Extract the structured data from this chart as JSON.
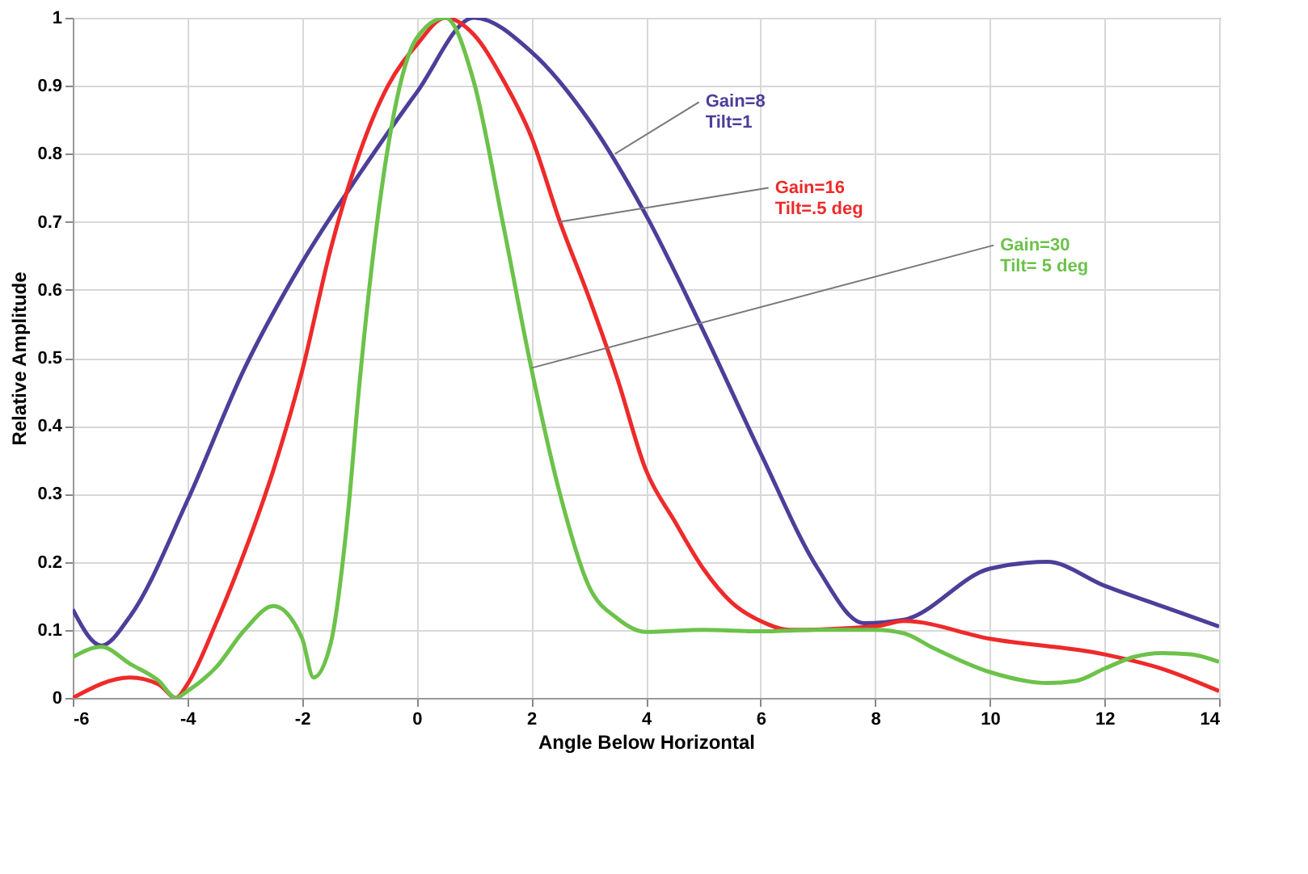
{
  "chart_data": {
    "type": "line",
    "xlabel": "Angle Below Horizontal",
    "ylabel": "Relative Amplitude",
    "xlim": [
      -6,
      14
    ],
    "xticks": [
      -6,
      -4,
      -2,
      0,
      2,
      4,
      6,
      8,
      10,
      12,
      14
    ],
    "ylim": [
      0,
      1
    ],
    "yticks": [
      0,
      0.1,
      0.2,
      0.3,
      0.4,
      0.5,
      0.6,
      0.7,
      0.8,
      0.9,
      1
    ],
    "grid": true,
    "marker": "none",
    "line_style": "solid",
    "series": [
      {
        "color": "#4b3f9a",
        "x": [
          -6,
          -5.5,
          -5,
          -4,
          -3,
          -2,
          -1,
          0,
          1,
          2,
          3,
          4,
          5,
          6,
          7,
          7.8,
          8.5,
          10,
          11,
          12,
          13,
          14
        ],
        "values": [
          0.13,
          0.077,
          0.12,
          0.29,
          0.485,
          0.64,
          0.77,
          0.89,
          1.0,
          0.95,
          0.85,
          0.71,
          0.54,
          0.36,
          0.19,
          0.11,
          0.115,
          0.19,
          0.2,
          0.165,
          0.135,
          0.105
        ]
      },
      {
        "color": "#ee2a2a",
        "x": [
          -6,
          -5,
          -4.5,
          -4.2,
          -4,
          -3.5,
          -3,
          -2.5,
          -2,
          -1.5,
          -1,
          -0.5,
          0,
          0.5,
          1,
          1.5,
          2,
          2.5,
          3,
          3.5,
          4,
          4.5,
          5,
          5.5,
          6,
          6.5,
          8,
          8.5,
          10,
          12,
          13,
          14
        ],
        "values": [
          0.0,
          0.03,
          0.02,
          0.0,
          0.02,
          0.11,
          0.215,
          0.335,
          0.48,
          0.66,
          0.8,
          0.9,
          0.96,
          1.0,
          0.975,
          0.91,
          0.825,
          0.7,
          0.59,
          0.47,
          0.335,
          0.26,
          0.19,
          0.14,
          0.113,
          0.1,
          0.105,
          0.113,
          0.087,
          0.064,
          0.043,
          0.01
        ]
      },
      {
        "color": "#6cc24a",
        "x": [
          -6,
          -5.5,
          -5,
          -4.5,
          -4.2,
          -4,
          -3.5,
          -3,
          -2.5,
          -2,
          -1.8,
          -1.5,
          -1.2,
          -1,
          -0.5,
          0,
          0.5,
          1,
          1.5,
          2,
          2.5,
          3,
          3.5,
          4,
          5,
          6,
          7,
          8,
          8.5,
          9,
          10,
          11,
          11.5,
          12,
          12.5,
          13,
          13.5,
          14
        ],
        "values": [
          0.06,
          0.075,
          0.05,
          0.025,
          0.0,
          0.01,
          0.045,
          0.1,
          0.135,
          0.088,
          0.03,
          0.08,
          0.27,
          0.46,
          0.81,
          0.97,
          1.0,
          0.905,
          0.7,
          0.485,
          0.3,
          0.165,
          0.117,
          0.097,
          0.1,
          0.098,
          0.1,
          0.1,
          0.095,
          0.074,
          0.038,
          0.022,
          0.025,
          0.043,
          0.06,
          0.066,
          0.064,
          0.053
        ]
      }
    ],
    "annotations": [
      {
        "text": "Gain=8\nTilt=1",
        "x": 3.46,
        "y": 0.8
      },
      {
        "text": "Gain=16\nTilt=.5 deg",
        "x": 2.5,
        "y": 0.7
      },
      {
        "text": "Gain=30\nTilt= 5 deg",
        "x": 2,
        "y": 0.485
      }
    ]
  }
}
